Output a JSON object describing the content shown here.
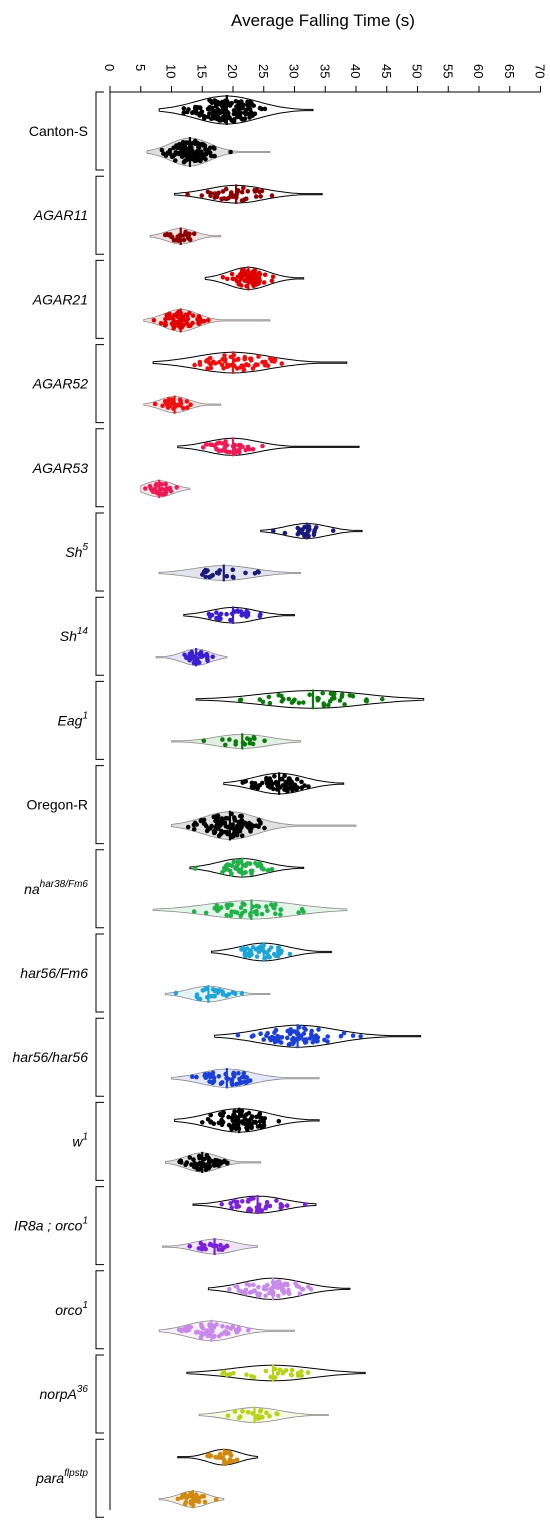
{
  "chart_data": {
    "type": "violin",
    "title": "Average Falling Time (s)",
    "x_ticks": [
      0,
      5,
      10,
      15,
      20,
      25,
      30,
      35,
      40,
      45,
      50,
      55,
      60,
      65,
      70
    ],
    "xlim": [
      0,
      70
    ],
    "legend": "none",
    "groups": [
      {
        "label": "Canton-S",
        "italic": false,
        "sup": "",
        "color": "#000000",
        "violins": [
          {
            "range": [
              8,
              33
            ],
            "median": 19,
            "n": 150
          },
          {
            "range": [
              6,
              26
            ],
            "median": 13,
            "n": 120
          }
        ]
      },
      {
        "label": "AGAR11",
        "italic": true,
        "sup": "",
        "color": "#8b0000",
        "violins": [
          {
            "range": [
              10.5,
              34.5
            ],
            "median": 20.5,
            "n": 40
          },
          {
            "range": [
              6.5,
              18
            ],
            "median": 11.5,
            "n": 25
          }
        ]
      },
      {
        "label": "AGAR21",
        "italic": true,
        "sup": "",
        "color": "#e00000",
        "violins": [
          {
            "range": [
              15.5,
              31.5
            ],
            "median": 22.5,
            "n": 70
          },
          {
            "range": [
              5.5,
              26
            ],
            "median": 11.5,
            "n": 70
          }
        ]
      },
      {
        "label": "AGAR52",
        "italic": true,
        "sup": "",
        "color": "#ee1111",
        "violins": [
          {
            "range": [
              7,
              38.5
            ],
            "median": 20,
            "n": 60
          },
          {
            "range": [
              5.5,
              18
            ],
            "median": 10.5,
            "n": 30
          }
        ]
      },
      {
        "label": "AGAR53",
        "italic": true,
        "sup": "",
        "color": "#ee1a55",
        "violins": [
          {
            "range": [
              11,
              40.5
            ],
            "median": 20,
            "n": 35
          },
          {
            "range": [
              5,
              13
            ],
            "median": 8,
            "n": 30
          }
        ]
      },
      {
        "label": "Sh",
        "italic": true,
        "sup": "5",
        "color": "#1a1a7a",
        "violins": [
          {
            "range": [
              24.5,
              41
            ],
            "median": 32,
            "n": 20
          },
          {
            "range": [
              8,
              31
            ],
            "median": 18.5,
            "n": 20
          }
        ]
      },
      {
        "label": "Sh",
        "italic": true,
        "sup": "14",
        "color": "#3a1fd0",
        "violins": [
          {
            "range": [
              12,
              30
            ],
            "median": 20,
            "n": 25
          },
          {
            "range": [
              7.5,
              19
            ],
            "median": 14,
            "n": 30
          }
        ]
      },
      {
        "label": "Eag",
        "italic": true,
        "sup": "1",
        "color": "#0a7a0a",
        "violins": [
          {
            "range": [
              14,
              51
            ],
            "median": 33,
            "n": 40
          },
          {
            "range": [
              10,
              31
            ],
            "median": 21.5,
            "n": 15
          }
        ]
      },
      {
        "label": "Oregon-R",
        "italic": false,
        "sup": "",
        "color": "#000000",
        "violins": [
          {
            "range": [
              18.5,
              38
            ],
            "median": 27.5,
            "n": 60
          },
          {
            "range": [
              10,
              40
            ],
            "median": 19.5,
            "n": 110
          }
        ]
      },
      {
        "label": "na",
        "italic": true,
        "sup": "har38/Fm6",
        "color": "#22b04a",
        "violins": [
          {
            "range": [
              13,
              31.5
            ],
            "median": 21.5,
            "n": 45
          },
          {
            "range": [
              7,
              38.5
            ],
            "median": 23,
            "n": 45
          }
        ]
      },
      {
        "label": "har56/Fm6",
        "italic": true,
        "sup": "",
        "color": "#1fa4d8",
        "violins": [
          {
            "range": [
              16.5,
              36
            ],
            "median": 25,
            "n": 40
          },
          {
            "range": [
              9,
              26
            ],
            "median": 16,
            "n": 25
          }
        ]
      },
      {
        "label": "har56/har56",
        "italic": true,
        "sup": "",
        "color": "#1a40d8",
        "violins": [
          {
            "range": [
              17,
              50.5
            ],
            "median": 30.5,
            "n": 70
          },
          {
            "range": [
              10,
              34
            ],
            "median": 19,
            "n": 45
          }
        ]
      },
      {
        "label": "w",
        "italic": true,
        "sup": "1",
        "color": "#000000",
        "violins": [
          {
            "range": [
              10.5,
              34
            ],
            "median": 21,
            "n": 80
          },
          {
            "range": [
              9,
              24.5
            ],
            "median": 15,
            "n": 50
          }
        ]
      },
      {
        "label": "IR8a ; orco",
        "italic": true,
        "sup": "1",
        "color": "#7a22d8",
        "violins": [
          {
            "range": [
              13.5,
              33.5
            ],
            "median": 24,
            "n": 35
          },
          {
            "range": [
              8.5,
              24
            ],
            "median": 17,
            "n": 20
          }
        ]
      },
      {
        "label": "orco",
        "italic": true,
        "sup": "1",
        "color": "#c88ae8",
        "violins": [
          {
            "range": [
              16,
              39
            ],
            "median": 26.5,
            "n": 65
          },
          {
            "range": [
              8,
              30
            ],
            "median": 16.5,
            "n": 55
          }
        ]
      },
      {
        "label": "norpA",
        "italic": true,
        "sup": "36",
        "color": "#b8d21a",
        "violins": [
          {
            "range": [
              12.5,
              41.5
            ],
            "median": 26.5,
            "n": 25
          },
          {
            "range": [
              14.5,
              35.5
            ],
            "median": 23.5,
            "n": 20
          }
        ]
      },
      {
        "label": "para",
        "italic": true,
        "sup": "flpstp",
        "color": "#d08a10",
        "violins": [
          {
            "range": [
              11,
              24
            ],
            "median": 18.5,
            "n": 25
          },
          {
            "range": [
              8,
              18.5
            ],
            "median": 13.5,
            "n": 30
          }
        ]
      }
    ]
  }
}
